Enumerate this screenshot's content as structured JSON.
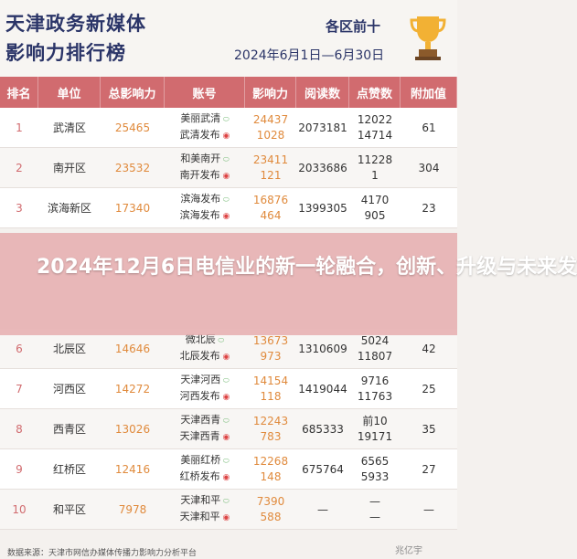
{
  "header": {
    "title_line1": "天津政务新媒体",
    "title_line2": "影响力排行榜",
    "subtitle": "各区前十",
    "date_range": "2024年6月1日—6月30日"
  },
  "table": {
    "columns": [
      "排名",
      "单位",
      "总影响力",
      "账号",
      "影响力",
      "阅读数",
      "点赞数",
      "附加值"
    ],
    "rows": [
      {
        "rank": "1",
        "unit": "武清区",
        "total": "25465",
        "acct1": "美丽武清",
        "acct2": "武清发布",
        "inf1": "24437",
        "inf2": "1028",
        "read": "2073181",
        "like1": "12022",
        "like2": "14714",
        "extra": "61"
      },
      {
        "rank": "2",
        "unit": "南开区",
        "total": "23532",
        "acct1": "和美南开",
        "acct2": "南开发布",
        "inf1": "23411",
        "inf2": "121",
        "read": "2033686",
        "like1": "11228",
        "like2": "1",
        "extra": "304"
      },
      {
        "rank": "3",
        "unit": "滨海新区",
        "total": "17340",
        "acct1": "滨海发布",
        "acct2": "滨海发布",
        "inf1": "16876",
        "inf2": "464",
        "read": "1399305",
        "like1": "4170",
        "like2": "905",
        "extra": "23"
      },
      {
        "rank": "6",
        "unit": "北辰区",
        "total": "14646",
        "acct1": "微北辰",
        "acct2": "北辰发布",
        "inf1": "13673",
        "inf2": "973",
        "read": "1310609",
        "like1": "5024",
        "like2": "11807",
        "extra": "42"
      },
      {
        "rank": "7",
        "unit": "河西区",
        "total": "14272",
        "acct1": "天津河西",
        "acct2": "河西发布",
        "inf1": "14154",
        "inf2": "118",
        "read": "1419044",
        "like1": "9716",
        "like2": "11763",
        "extra": "25"
      },
      {
        "rank": "8",
        "unit": "西青区",
        "total": "13026",
        "acct1": "天津西青",
        "acct2": "天津西青",
        "inf1": "12243",
        "inf2": "783",
        "read": "685333",
        "like1": "前10",
        "like2": "19171",
        "extra": "35"
      },
      {
        "rank": "9",
        "unit": "红桥区",
        "total": "12416",
        "acct1": "美丽红桥",
        "acct2": "红桥发布",
        "inf1": "12268",
        "inf2": "148",
        "read": "675764",
        "like1": "6565",
        "like2": "5933",
        "extra": "27"
      },
      {
        "rank": "10",
        "unit": "和平区",
        "total": "7978",
        "acct1": "天津和平",
        "acct2": "天津和平",
        "inf1": "7390",
        "inf2": "588",
        "read": "—",
        "like1": "—",
        "like2": "—",
        "extra": "—"
      }
    ]
  },
  "banner": {
    "text": "2024年12月6日电信业的新一轮融合，创新、升级与未来发"
  },
  "footer": {
    "source": "数据来源：天津市网信办媒体传播力影响力分析平台",
    "watermark": "兆亿宇"
  }
}
